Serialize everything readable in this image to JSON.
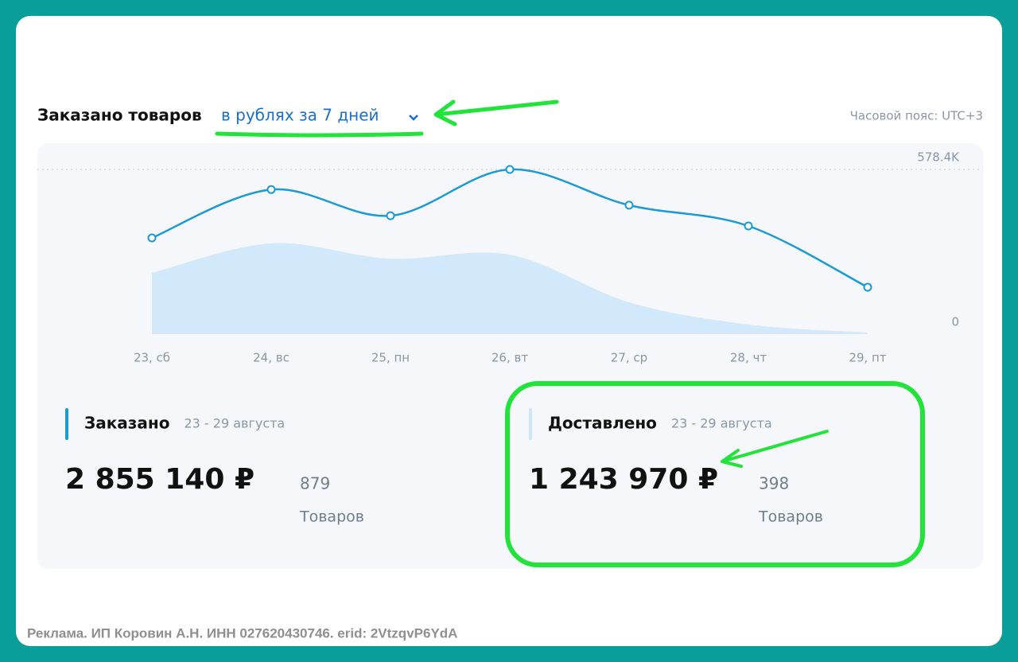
{
  "header": {
    "title": "Заказано товаров",
    "period": "в рублях за 7 дней",
    "timezone": "Часовой пояс: UTC+3"
  },
  "chart_data": {
    "type": "line",
    "categories": [
      "23, сб",
      "24, вс",
      "25, пн",
      "26, вт",
      "27, ср",
      "28, чт",
      "29, пт"
    ],
    "series": [
      {
        "name": "Заказано",
        "color": "#1a9ad6",
        "style": "line",
        "values": [
          338000,
          508000,
          416000,
          578400,
          453000,
          380000,
          165000
        ]
      },
      {
        "name": "Доставлено",
        "color": "#cde7fa",
        "style": "area",
        "values": [
          215000,
          319000,
          265000,
          279000,
          112000,
          34000,
          6000
        ]
      }
    ],
    "ylim": [
      0,
      578400
    ],
    "yticks": [
      0,
      {
        "value": 578400,
        "label": "578.4K"
      }
    ],
    "grid": true
  },
  "summary": [
    {
      "period": "23 - 29 августа",
      "amount": "2 855 140 ₽",
      "count": 879,
      "count_label": "Товаров"
    },
    {
      "period": "23 - 29 августа",
      "amount": "1 243 970 ₽",
      "count": 398,
      "count_label": "Товаров"
    }
  ],
  "footer": "Реклама. ИП Коровин А.Н. ИНН 027620430746. erid: 2VtzqvP6YdA"
}
